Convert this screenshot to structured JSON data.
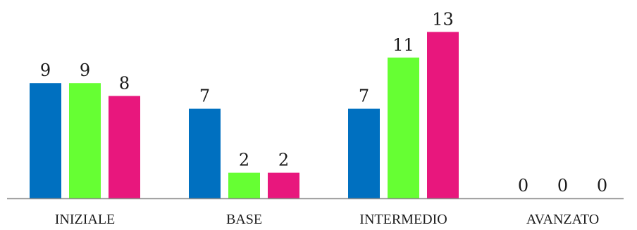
{
  "chart_data": {
    "type": "bar",
    "categories": [
      "INIZIALE",
      "BASE",
      "INTERMEDIO",
      "AVANZATO"
    ],
    "series": [
      {
        "values": [
          9,
          7,
          7,
          0
        ],
        "color": "#0070C0"
      },
      {
        "values": [
          9,
          2,
          11,
          0
        ],
        "color": "#66FF33"
      },
      {
        "values": [
          8,
          2,
          13,
          0
        ],
        "color": "#E8177D"
      }
    ],
    "ylim": [
      0,
      15
    ],
    "grid": false,
    "legend": "none",
    "data_labels": true,
    "axis_color": "#8C8C8C"
  }
}
